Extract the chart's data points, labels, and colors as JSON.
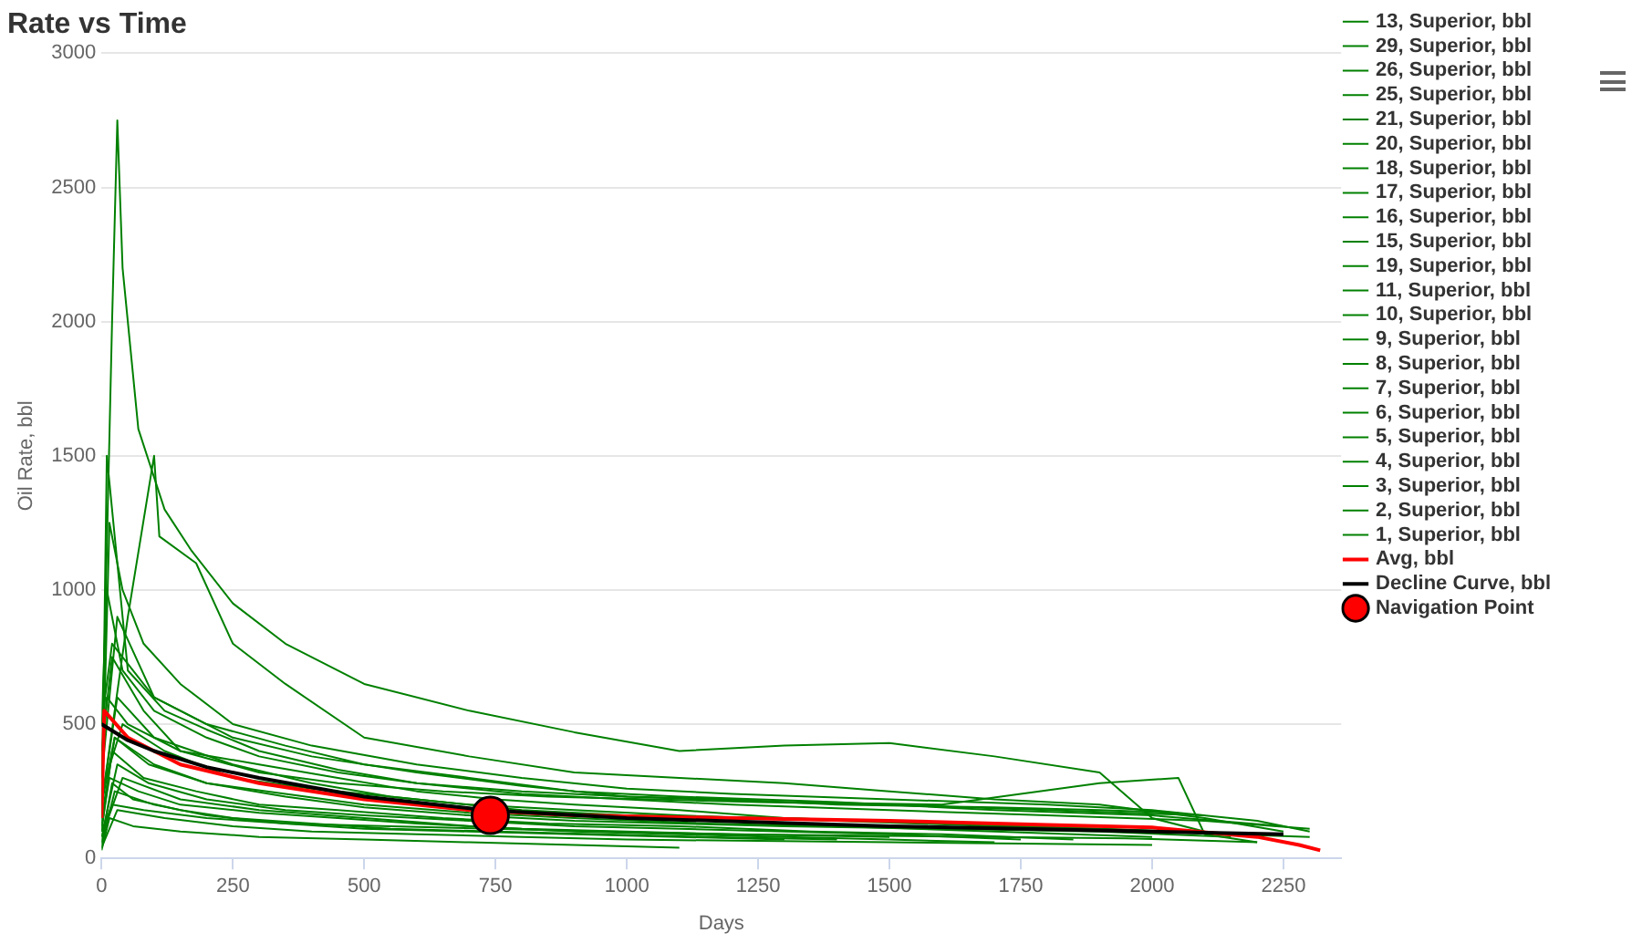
{
  "chart_data": {
    "type": "line",
    "title": "Rate vs Time",
    "xlabel": "Days",
    "ylabel": "Oil Rate, bbl",
    "xlim": [
      0,
      2360
    ],
    "ylim": [
      0,
      3000
    ],
    "xticks": [
      0,
      250,
      500,
      750,
      1000,
      1250,
      1500,
      1750,
      2000,
      2250
    ],
    "yticks": [
      0,
      500,
      1000,
      1500,
      2000,
      2500,
      3000
    ],
    "grid": "y",
    "legend": "right",
    "marker": "none",
    "line_style": "solid",
    "series": [
      {
        "name": "13, Superior, bbl",
        "color": "#008000",
        "x": [
          0,
          20,
          30,
          40,
          70,
          120,
          170,
          250,
          350,
          500,
          700,
          900,
          1100,
          1300,
          1500,
          1700,
          1900,
          2000,
          2100
        ],
        "values": [
          300,
          2000,
          2750,
          2200,
          1600,
          1300,
          1150,
          950,
          800,
          650,
          550,
          470,
          400,
          420,
          430,
          380,
          320,
          150,
          100
        ]
      },
      {
        "name": "29, Superior, bbl",
        "color": "#008000",
        "x": [
          0,
          50,
          100,
          110,
          180,
          250,
          350,
          500,
          700,
          900,
          1100,
          1300,
          1500,
          1700,
          1900,
          2100,
          2250
        ],
        "values": [
          200,
          900,
          1500,
          1200,
          1100,
          800,
          650,
          450,
          380,
          320,
          300,
          280,
          250,
          220,
          200,
          150,
          100
        ]
      },
      {
        "name": "26, Superior, bbl",
        "color": "#008000",
        "x": [
          0,
          15,
          40,
          80,
          150,
          250,
          400,
          600,
          800,
          1000,
          1200,
          1500,
          1800,
          2000,
          2200,
          2300
        ],
        "values": [
          150,
          1250,
          1000,
          800,
          650,
          500,
          420,
          350,
          300,
          260,
          240,
          220,
          200,
          180,
          140,
          100
        ]
      },
      {
        "name": "25, Superior, bbl",
        "color": "#008000",
        "x": [
          0,
          10,
          50,
          120,
          200,
          300,
          450,
          600,
          800,
          1000,
          1300,
          1600,
          1900,
          2050,
          2100,
          2200
        ],
        "values": [
          100,
          1500,
          700,
          550,
          480,
          400,
          330,
          280,
          250,
          230,
          210,
          200,
          280,
          300,
          90,
          60
        ]
      },
      {
        "name": "21, Superior, bbl",
        "color": "#008000",
        "x": [
          0,
          30,
          100,
          200,
          350,
          500,
          700,
          900,
          1100,
          1400,
          1700,
          2000,
          2250
        ],
        "values": [
          300,
          900,
          600,
          500,
          420,
          350,
          300,
          250,
          230,
          210,
          180,
          160,
          120
        ]
      },
      {
        "name": "20, Superior, bbl",
        "color": "#008000",
        "x": [
          0,
          20,
          80,
          150,
          300,
          450,
          600,
          750,
          900,
          1100,
          1300,
          1600,
          1900,
          2200
        ],
        "values": [
          400,
          750,
          550,
          400,
          350,
          300,
          250,
          220,
          200,
          180,
          150,
          130,
          110,
          90
        ]
      },
      {
        "name": "18, Superior, bbl",
        "color": "#008000",
        "x": [
          0,
          30,
          100,
          250,
          400,
          550,
          700,
          900,
          1100,
          1400,
          1700,
          2000,
          2300
        ],
        "values": [
          200,
          600,
          450,
          350,
          280,
          230,
          200,
          180,
          160,
          140,
          120,
          100,
          80
        ]
      },
      {
        "name": "17, Superior, bbl",
        "color": "#008000",
        "x": [
          0,
          40,
          120,
          250,
          400,
          600,
          800,
          1000,
          1300,
          1600,
          1900,
          2150
        ],
        "values": [
          250,
          500,
          400,
          300,
          260,
          220,
          180,
          160,
          150,
          130,
          110,
          90
        ]
      },
      {
        "name": "16, Superior, bbl",
        "color": "#008000",
        "x": [
          0,
          25,
          100,
          200,
          350,
          500,
          700,
          900,
          1150,
          1400,
          1700,
          2000
        ],
        "values": [
          150,
          450,
          350,
          280,
          240,
          200,
          170,
          150,
          130,
          120,
          100,
          80
        ]
      },
      {
        "name": "15, Superior, bbl",
        "color": "#008000",
        "x": [
          0,
          20,
          80,
          180,
          300,
          450,
          650,
          850,
          1100,
          1350,
          1600,
          1850
        ],
        "values": [
          100,
          400,
          300,
          250,
          200,
          180,
          150,
          130,
          120,
          100,
          90,
          70
        ]
      },
      {
        "name": "19, Superior, bbl",
        "color": "#008000",
        "x": [
          0,
          30,
          90,
          200,
          350,
          500,
          700,
          900,
          1100,
          1300,
          1500,
          1750
        ],
        "values": [
          80,
          350,
          280,
          220,
          180,
          160,
          140,
          120,
          110,
          100,
          90,
          70
        ]
      },
      {
        "name": "11, Superior, bbl",
        "color": "#008000",
        "x": [
          0,
          15,
          70,
          150,
          300,
          450,
          600,
          800,
          1000,
          1200,
          1500
        ],
        "values": [
          120,
          300,
          250,
          200,
          170,
          150,
          130,
          110,
          100,
          90,
          80
        ]
      },
      {
        "name": "10, Superior, bbl",
        "color": "#008000",
        "x": [
          0,
          20,
          60,
          150,
          250,
          400,
          550,
          750,
          950,
          1150,
          1400
        ],
        "values": [
          60,
          280,
          220,
          180,
          150,
          130,
          110,
          100,
          90,
          80,
          70
        ]
      },
      {
        "name": "9, Superior, bbl",
        "color": "#008000",
        "x": [
          0,
          25,
          100,
          200,
          350,
          500,
          700,
          900,
          1100,
          1300
        ],
        "values": [
          50,
          250,
          200,
          160,
          130,
          110,
          100,
          90,
          80,
          70
        ]
      },
      {
        "name": "8, Superior, bbl",
        "color": "#008000",
        "x": [
          0,
          10,
          50,
          150,
          300,
          450,
          650,
          850,
          1050,
          1250,
          1500,
          1800,
          2100
        ],
        "values": [
          300,
          600,
          500,
          400,
          320,
          280,
          250,
          230,
          220,
          210,
          200,
          180,
          160
        ]
      },
      {
        "name": "7, Superior, bbl",
        "color": "#008000",
        "x": [
          0,
          20,
          80,
          200,
          350,
          550,
          750,
          950,
          1200,
          1450,
          1700,
          1950,
          2200
        ],
        "values": [
          100,
          200,
          180,
          150,
          130,
          120,
          110,
          100,
          90,
          85,
          80,
          75,
          60
        ]
      },
      {
        "name": "6, Superior, bbl",
        "color": "#008000",
        "x": [
          0,
          30,
          120,
          250,
          400,
          600,
          800,
          1000,
          1250,
          1500,
          1750,
          2000
        ],
        "values": [
          40,
          180,
          150,
          120,
          100,
          90,
          80,
          70,
          65,
          60,
          55,
          50
        ]
      },
      {
        "name": "5, Superior, bbl",
        "color": "#008000",
        "x": [
          0,
          15,
          60,
          150,
          300,
          500,
          700,
          900,
          1100
        ],
        "values": [
          30,
          150,
          120,
          100,
          80,
          70,
          60,
          50,
          40
        ]
      },
      {
        "name": "4, Superior, bbl",
        "color": "#008000",
        "x": [
          0,
          20,
          100,
          250,
          400,
          600,
          800,
          1000,
          1200,
          1400,
          1700,
          1900,
          2050
        ],
        "values": [
          500,
          800,
          600,
          450,
          380,
          320,
          270,
          230,
          220,
          200,
          190,
          180,
          170
        ]
      },
      {
        "name": "3, Superior, bbl",
        "color": "#008000",
        "x": [
          0,
          40,
          150,
          300,
          500,
          700,
          900,
          1100,
          1300,
          1500,
          1700
        ],
        "values": [
          80,
          300,
          220,
          180,
          150,
          120,
          100,
          90,
          80,
          70,
          60
        ]
      },
      {
        "name": "2, Superior, bbl",
        "color": "#008000",
        "x": [
          0,
          25,
          90,
          200,
          350,
          500,
          700,
          900,
          1100,
          1300,
          1600,
          1900,
          2150
        ],
        "values": [
          200,
          450,
          350,
          280,
          230,
          190,
          160,
          140,
          130,
          120,
          110,
          100,
          80
        ]
      },
      {
        "name": "1, Superior, bbl",
        "color": "#008000",
        "x": [
          0,
          10,
          40,
          100,
          200,
          300,
          450,
          600,
          800,
          1000,
          1200,
          1500,
          1800,
          2100,
          2300
        ],
        "values": [
          500,
          1000,
          700,
          550,
          450,
          380,
          320,
          280,
          240,
          220,
          200,
          180,
          160,
          140,
          110
        ]
      },
      {
        "name": "Avg, bbl",
        "color": "#ff0000",
        "x": [
          0,
          5,
          50,
          150,
          300,
          500,
          700,
          900,
          1200,
          1500,
          1800,
          2000,
          2200,
          2280,
          2320
        ],
        "values": [
          150,
          550,
          450,
          350,
          280,
          220,
          180,
          160,
          150,
          140,
          125,
          115,
          80,
          50,
          30
        ]
      },
      {
        "name": "Decline Curve, bbl",
        "color": "#000000",
        "x": [
          0,
          50,
          100,
          200,
          300,
          500,
          730,
          1000,
          1250,
          1500,
          1750,
          2000,
          2250
        ],
        "values": [
          500,
          440,
          400,
          340,
          300,
          230,
          180,
          150,
          135,
          120,
          110,
          100,
          90
        ]
      },
      {
        "name": "Navigation Point",
        "type": "scatter",
        "color": "#ff0000",
        "marker": "circle",
        "x": [
          740
        ],
        "values": [
          160
        ]
      }
    ]
  }
}
